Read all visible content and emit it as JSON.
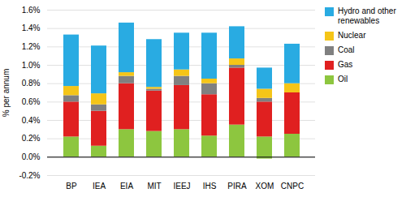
{
  "chart_data": {
    "type": "bar",
    "stacked": true,
    "categories": [
      "BP",
      "IEA",
      "EIA",
      "MIT",
      "IEEJ",
      "IHS",
      "PIRA",
      "XOM",
      "CNPC"
    ],
    "series": [
      {
        "name": "Oil",
        "color": "#8dc63f",
        "values": [
          0.22,
          0.12,
          0.3,
          0.28,
          0.3,
          0.23,
          0.35,
          0.22,
          0.25
        ],
        "negative_values": [
          0.0,
          0.0,
          0.0,
          0.0,
          0.0,
          0.0,
          0.0,
          -0.02,
          0.0
        ]
      },
      {
        "name": "Gas",
        "color": "#e02020",
        "values": [
          0.38,
          0.38,
          0.5,
          0.44,
          0.48,
          0.45,
          0.62,
          0.38,
          0.45
        ]
      },
      {
        "name": "Coal",
        "color": "#808080",
        "values": [
          0.07,
          0.07,
          0.08,
          0.02,
          0.1,
          0.12,
          0.03,
          0.04,
          0.0
        ]
      },
      {
        "name": "Nuclear",
        "color": "#f5c518",
        "values": [
          0.1,
          0.12,
          0.04,
          0.02,
          0.07,
          0.05,
          0.07,
          0.1,
          0.1
        ]
      },
      {
        "name": "Hydro and other\nrenewables",
        "color": "#29abe2",
        "values": [
          0.56,
          0.52,
          0.54,
          0.52,
          0.4,
          0.5,
          0.35,
          0.23,
          0.43
        ]
      }
    ],
    "ylabel": "% per annum",
    "ylim": [
      -0.2,
      1.6
    ],
    "yticks": [
      {
        "value": -0.2,
        "label": "-0.2%"
      },
      {
        "value": 0.0,
        "label": "0.0%"
      },
      {
        "value": 0.2,
        "label": "0.2%"
      },
      {
        "value": 0.4,
        "label": "0.4%"
      },
      {
        "value": 0.6,
        "label": "0.6%"
      },
      {
        "value": 0.8,
        "label": "0.8%"
      },
      {
        "value": 1.0,
        "label": "1.0%"
      },
      {
        "value": 1.2,
        "label": "1.2%"
      },
      {
        "value": 1.4,
        "label": "1.4%"
      },
      {
        "value": 1.6,
        "label": "1.6%"
      }
    ],
    "grid": true,
    "legend": "right"
  }
}
